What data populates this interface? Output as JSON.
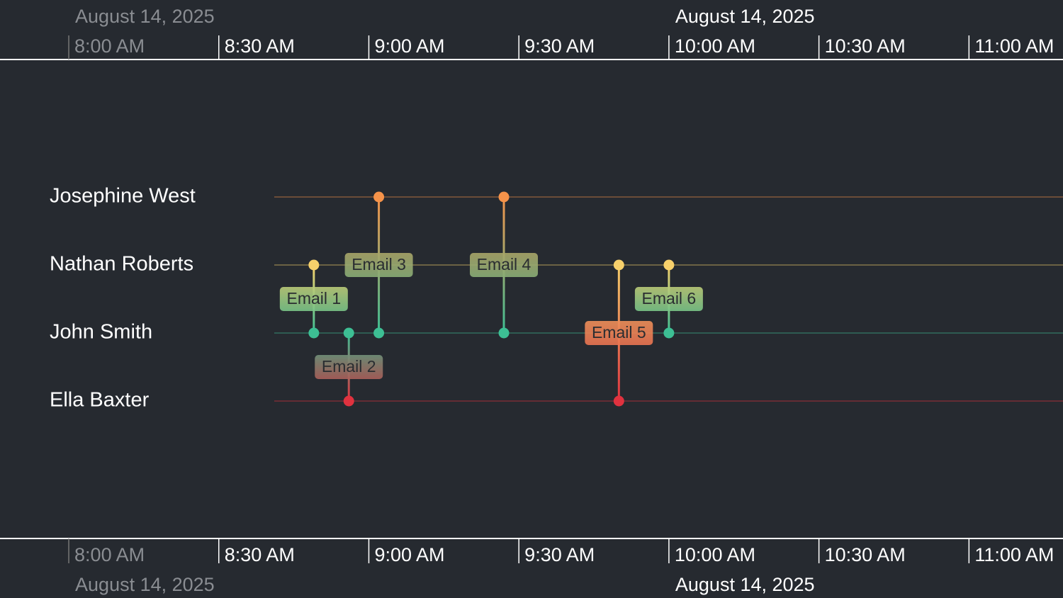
{
  "chart_data": {
    "type": "timeline",
    "xlim": [
      466.25,
      678.8
    ],
    "xticks": [
      {
        "value": 480,
        "label": "8:00 AM"
      },
      {
        "value": 510,
        "label": "8:30 AM"
      },
      {
        "value": 540,
        "label": "9:00 AM"
      },
      {
        "value": 570,
        "label": "9:30 AM"
      },
      {
        "value": 600,
        "label": "10:00 AM"
      },
      {
        "value": 630,
        "label": "10:30 AM"
      },
      {
        "value": 660,
        "label": "11:00 AM"
      }
    ],
    "date_ticks": [
      {
        "value": 480,
        "label": "August 14, 2025"
      },
      {
        "value": 600,
        "label": "August 14, 2025"
      }
    ],
    "people": [
      {
        "name": "Josephine West",
        "color": "#f5934a"
      },
      {
        "name": "Nathan Roberts",
        "color": "#f7d06b"
      },
      {
        "name": "John Smith",
        "color": "#3dbf94"
      },
      {
        "name": "Ella Baxter",
        "color": "#e0323f"
      }
    ],
    "events": [
      {
        "label": "Email 1",
        "time": 529,
        "from": 1,
        "to": 2
      },
      {
        "label": "Email 2",
        "time": 536,
        "from": 2,
        "to": 3
      },
      {
        "label": "Email 3",
        "time": 542,
        "from": 0,
        "to": 2
      },
      {
        "label": "Email 4",
        "time": 567,
        "from": 0,
        "to": 2
      },
      {
        "label": "Email 5",
        "time": 590,
        "from": 1,
        "to": 3
      },
      {
        "label": "Email 6",
        "time": 600,
        "from": 1,
        "to": 2
      }
    ]
  }
}
